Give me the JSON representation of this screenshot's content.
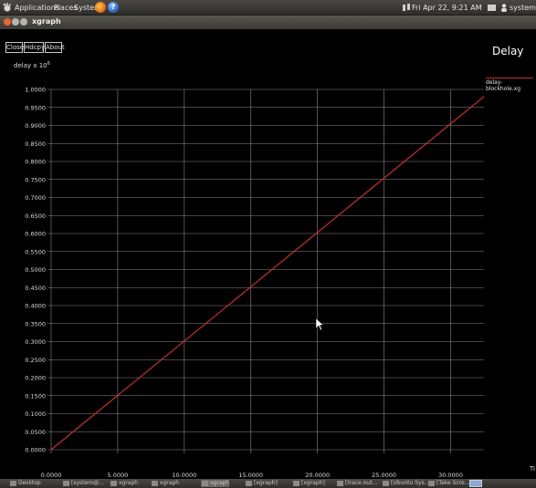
{
  "panel": {
    "applications": "Applications",
    "places": "Places",
    "system": "System",
    "help_glyph": "?",
    "clock": "Fri Apr 22,  9:21 AM",
    "user": "system",
    "icons": [
      "gnome-foot-icon",
      "firefox-icon",
      "help-icon",
      "network-icon",
      "mail-icon",
      "user-icon"
    ]
  },
  "window": {
    "title": "xgraph",
    "buttons": {
      "close": "Close",
      "hardcopy": "Hdcpy",
      "about": "About"
    }
  },
  "chart_data": {
    "type": "line",
    "title": "Delay",
    "ylabel": "delay x 10",
    "ylabel_exponent": "6",
    "xlabel": "Ti",
    "xlim": [
      0,
      32.5
    ],
    "ylim": [
      0,
      1.0
    ],
    "grid": true,
    "legend_placement": "top-right",
    "x_ticks": [
      "0.0000",
      "5.0000",
      "10.0000",
      "15.0000",
      "20.0000",
      "25.0000",
      "30.0000"
    ],
    "y_ticks": [
      "0.0000",
      "0.0500",
      "0.1000",
      "0.1500",
      "0.2000",
      "0.2500",
      "0.3000",
      "0.3500",
      "0.4000",
      "0.4500",
      "0.5000",
      "0.5500",
      "0.6000",
      "0.6500",
      "0.7000",
      "0.7500",
      "0.8000",
      "0.8500",
      "0.9000",
      "0.9500",
      "1.0000"
    ],
    "series": [
      {
        "name": "delay-blockhole.xg",
        "color": "#c23030",
        "x": [
          0,
          32.5
        ],
        "y": [
          0,
          0.98
        ]
      }
    ]
  },
  "taskbar": {
    "items": [
      "Desktop",
      "[system@...",
      "xgraph",
      "xgraph",
      "xgraph",
      "[xgraph]",
      "[xgraph]",
      "[trace.out...",
      "[Ubuntu Sys...",
      "[Take Scre..."
    ],
    "active_index": 4
  }
}
